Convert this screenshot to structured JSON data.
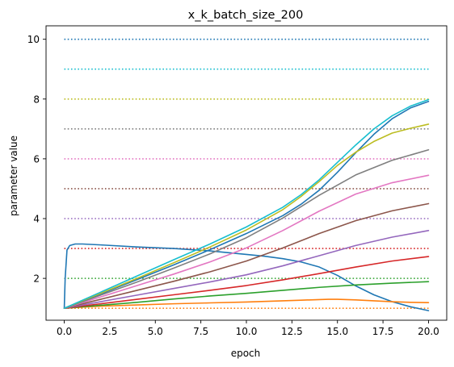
{
  "chart_data": {
    "type": "line",
    "title": "x_k_batch_size_200",
    "xlabel": "epoch",
    "ylabel": "parameter value",
    "xlim": [
      -1.0,
      21.0
    ],
    "ylim": [
      0.6,
      10.45
    ],
    "xticks": [
      0.0,
      2.5,
      5.0,
      7.5,
      10.0,
      12.5,
      15.0,
      17.5,
      20.0
    ],
    "xtick_labels": [
      "0.0",
      "2.5",
      "5.0",
      "7.5",
      "10.0",
      "12.5",
      "15.0",
      "17.5",
      "20.0"
    ],
    "yticks": [
      2,
      4,
      6,
      8,
      10
    ],
    "ytick_labels": [
      "2",
      "4",
      "6",
      "8",
      "10"
    ],
    "grid": false,
    "targets": [
      {
        "value": 1,
        "color": "#ff7f0e"
      },
      {
        "value": 2,
        "color": "#2ca02c"
      },
      {
        "value": 3,
        "color": "#d62728"
      },
      {
        "value": 4,
        "color": "#9467bd"
      },
      {
        "value": 5,
        "color": "#8c564b"
      },
      {
        "value": 6,
        "color": "#e377c2"
      },
      {
        "value": 7,
        "color": "#7f7f7f"
      },
      {
        "value": 8,
        "color": "#bcbd22"
      },
      {
        "value": 9,
        "color": "#17becf"
      },
      {
        "value": 10,
        "color": "#1f77b4"
      }
    ],
    "series": [
      {
        "color": "#1f77b4",
        "x": [
          0,
          0.05,
          0.15,
          0.3,
          0.6,
          1,
          2,
          4,
          6,
          8,
          10,
          11,
          12,
          13,
          14,
          15,
          16,
          17,
          18,
          19,
          20
        ],
        "values": [
          1.0,
          2.0,
          2.95,
          3.1,
          3.15,
          3.15,
          3.12,
          3.05,
          3.0,
          2.92,
          2.8,
          2.74,
          2.66,
          2.55,
          2.38,
          2.1,
          1.75,
          1.45,
          1.22,
          1.05,
          0.92
        ]
      },
      {
        "color": "#ff7f0e",
        "x": [
          0,
          1,
          2,
          4,
          6,
          8,
          10,
          12,
          13,
          14,
          14.5,
          15,
          16,
          17,
          18,
          19,
          20
        ],
        "values": [
          1.0,
          1.04,
          1.07,
          1.11,
          1.15,
          1.18,
          1.21,
          1.25,
          1.27,
          1.29,
          1.3,
          1.3,
          1.28,
          1.25,
          1.22,
          1.2,
          1.19
        ]
      },
      {
        "color": "#2ca02c",
        "x": [
          0,
          2,
          4,
          6,
          8,
          10,
          12,
          14,
          16,
          18,
          20
        ],
        "values": [
          1.0,
          1.1,
          1.2,
          1.31,
          1.41,
          1.5,
          1.6,
          1.7,
          1.78,
          1.84,
          1.89
        ]
      },
      {
        "color": "#d62728",
        "x": [
          0,
          2,
          4,
          6,
          8,
          10,
          12,
          14,
          16,
          18,
          20
        ],
        "values": [
          1.0,
          1.15,
          1.3,
          1.45,
          1.6,
          1.76,
          1.95,
          2.16,
          2.38,
          2.58,
          2.73
        ]
      },
      {
        "color": "#9467bd",
        "x": [
          0,
          2,
          4,
          6,
          8,
          10,
          12,
          14,
          16,
          18,
          20
        ],
        "values": [
          1.0,
          1.22,
          1.44,
          1.66,
          1.88,
          2.12,
          2.42,
          2.76,
          3.1,
          3.38,
          3.6
        ]
      },
      {
        "color": "#8c564b",
        "x": [
          0,
          2,
          4,
          6,
          8,
          10,
          12,
          14,
          16,
          18,
          20
        ],
        "values": [
          1.0,
          1.3,
          1.6,
          1.9,
          2.22,
          2.58,
          3.02,
          3.5,
          3.93,
          4.26,
          4.5
        ]
      },
      {
        "color": "#e377c2",
        "x": [
          0,
          2,
          4,
          6,
          8,
          10,
          12,
          14,
          16,
          18,
          20
        ],
        "values": [
          1.0,
          1.38,
          1.76,
          2.14,
          2.55,
          3.02,
          3.6,
          4.25,
          4.82,
          5.2,
          5.45
        ]
      },
      {
        "color": "#7f7f7f",
        "x": [
          0,
          2,
          4,
          6,
          8,
          10,
          12,
          14,
          16,
          18,
          20
        ],
        "values": [
          1.0,
          1.44,
          1.88,
          2.34,
          2.82,
          3.36,
          4.02,
          4.78,
          5.46,
          5.95,
          6.3
        ]
      },
      {
        "color": "#1f77b4",
        "x": [
          0,
          2,
          4,
          6,
          8,
          10,
          12,
          13,
          14,
          15,
          16,
          17,
          18,
          19,
          20
        ],
        "values": [
          1.0,
          1.48,
          1.96,
          2.45,
          2.96,
          3.5,
          4.1,
          4.48,
          4.95,
          5.55,
          6.2,
          6.82,
          7.34,
          7.7,
          7.92
        ]
      },
      {
        "color": "#bcbd22",
        "x": [
          0,
          2,
          4,
          6,
          8,
          10,
          12,
          13,
          14,
          15,
          16,
          17,
          18,
          19,
          20
        ],
        "values": [
          1.0,
          1.5,
          2.0,
          2.52,
          3.05,
          3.62,
          4.3,
          4.74,
          5.24,
          5.78,
          6.22,
          6.58,
          6.86,
          7.02,
          7.16
        ]
      },
      {
        "color": "#17becf",
        "x": [
          0,
          2,
          4,
          6,
          8,
          10,
          12,
          13,
          14,
          15,
          16,
          17,
          18,
          19,
          20
        ],
        "values": [
          1.0,
          1.54,
          2.08,
          2.62,
          3.15,
          3.72,
          4.38,
          4.8,
          5.3,
          5.88,
          6.46,
          7.0,
          7.44,
          7.76,
          7.98
        ]
      }
    ]
  }
}
